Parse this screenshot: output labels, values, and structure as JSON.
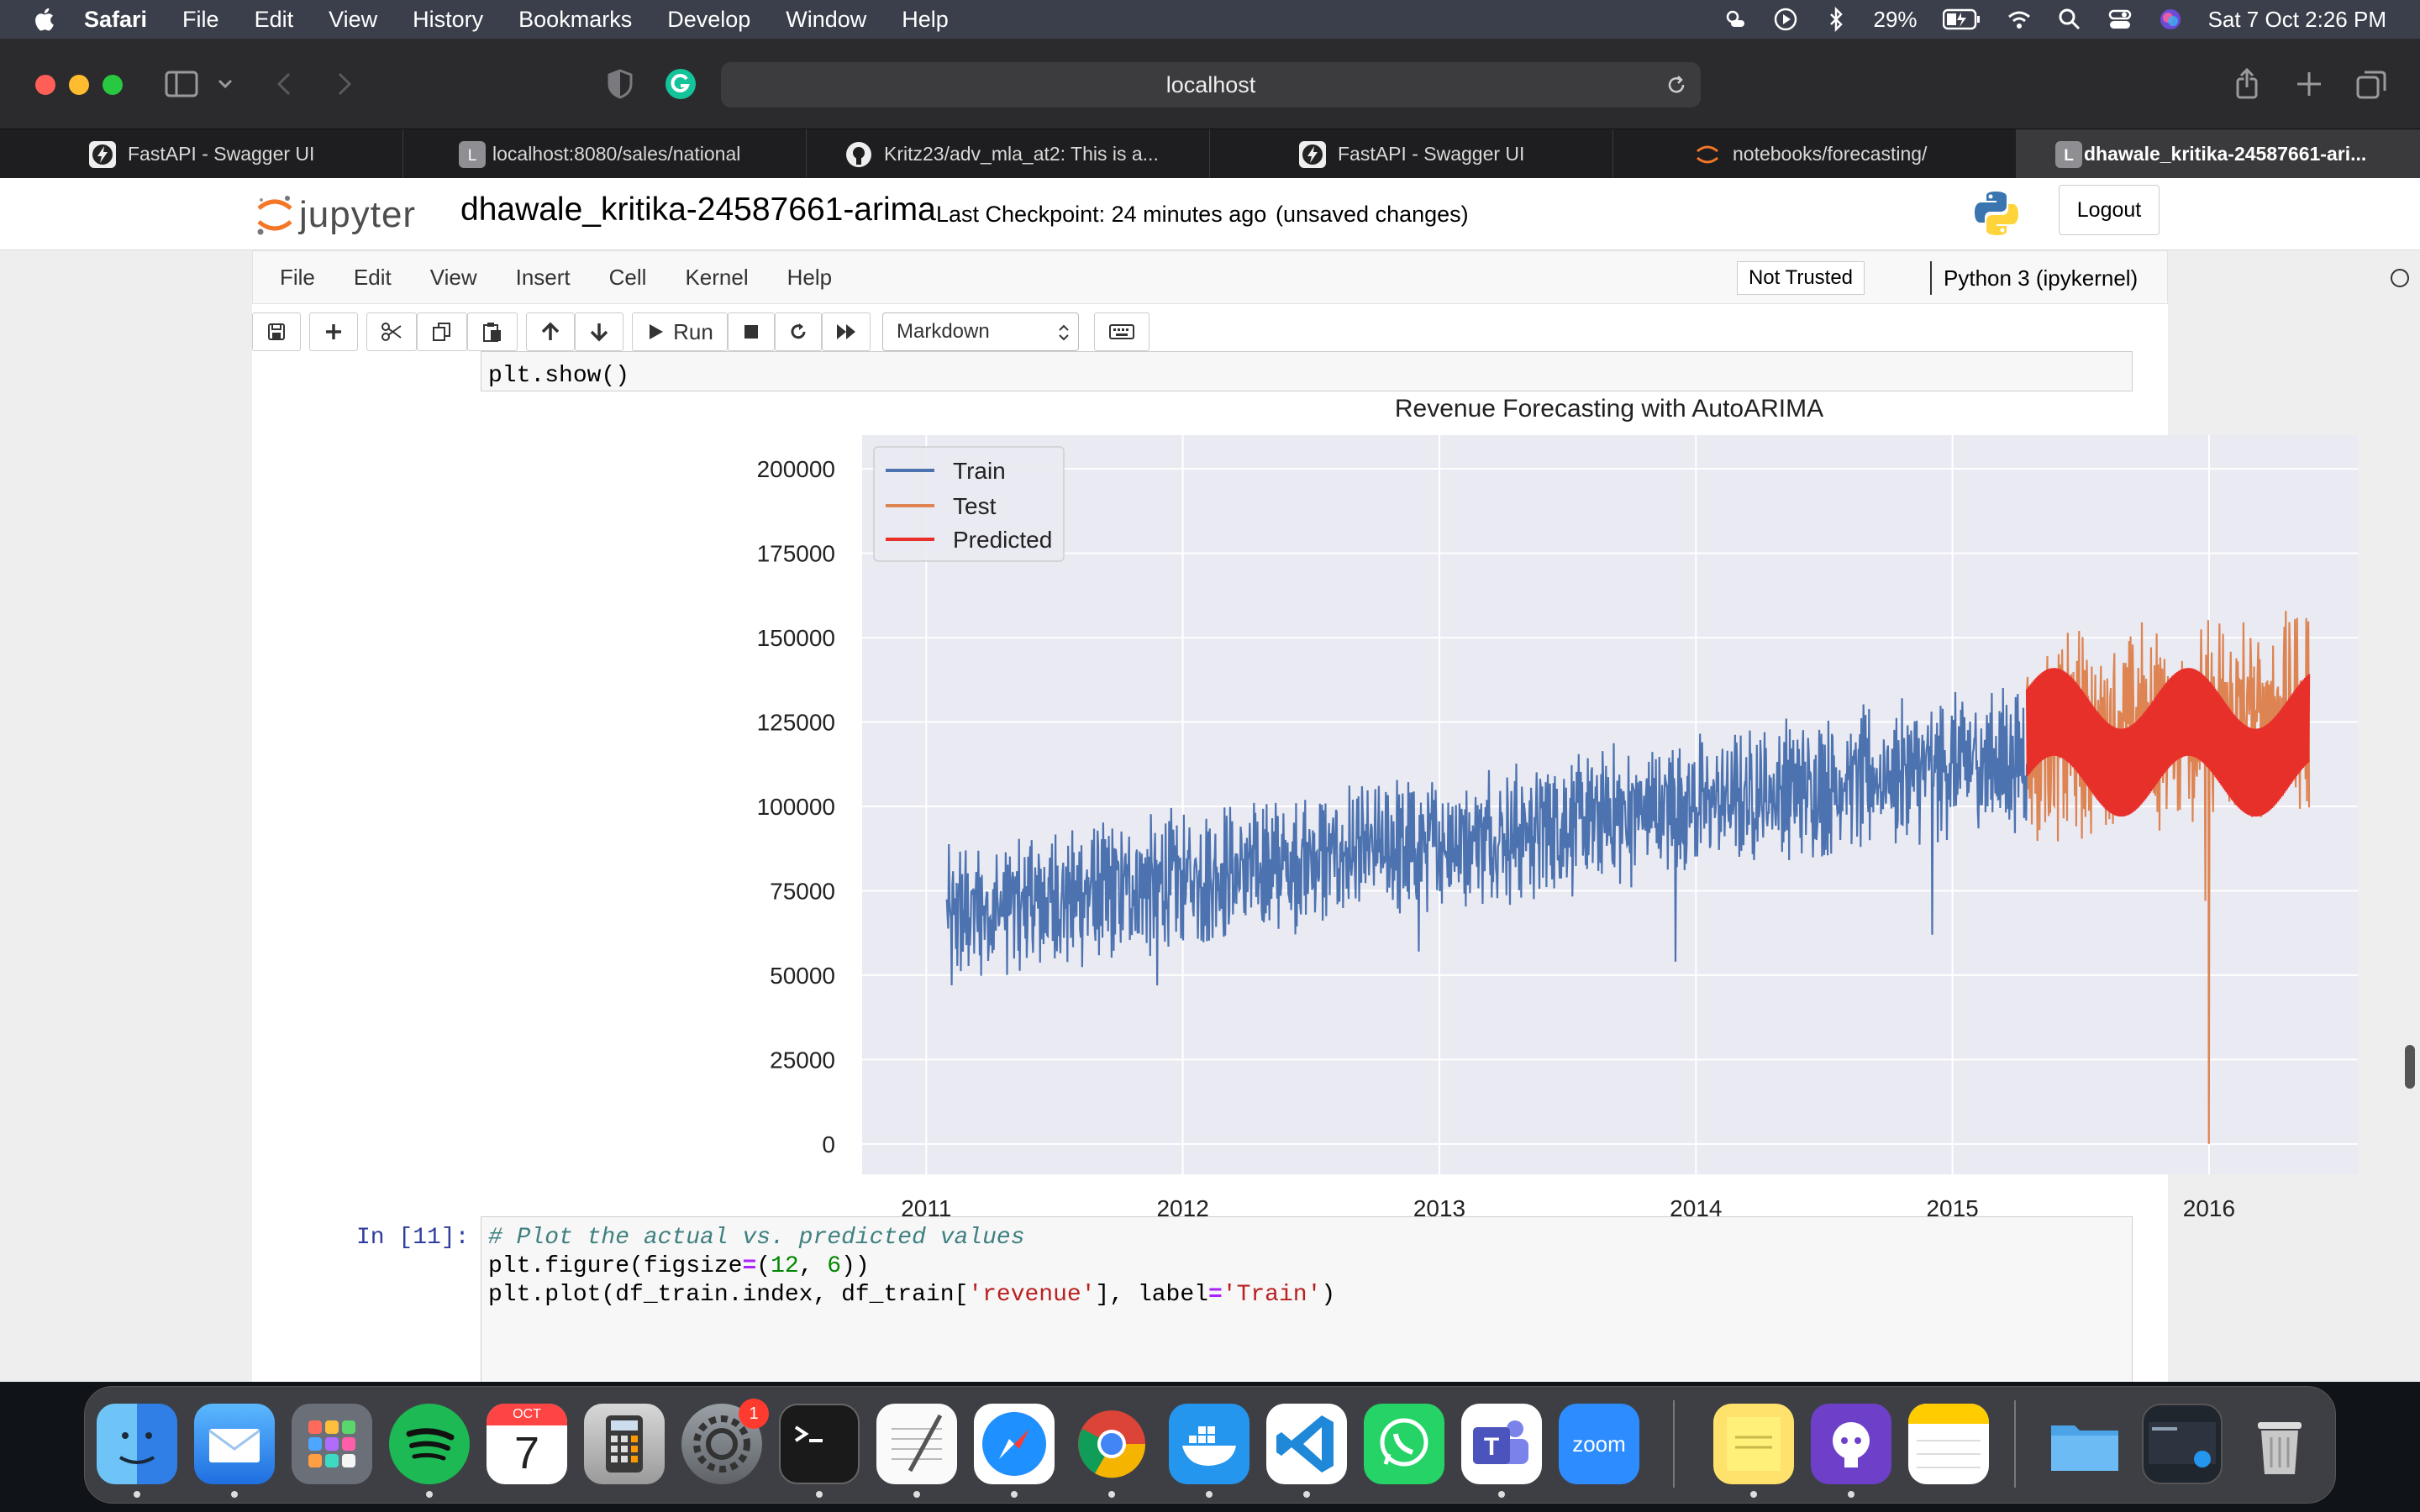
{
  "menubar": {
    "app": "Safari",
    "items": [
      "File",
      "Edit",
      "View",
      "History",
      "Bookmarks",
      "Develop",
      "Window",
      "Help"
    ],
    "battery": "29%",
    "datetime": "Sat 7 Oct  2:26 PM"
  },
  "browser": {
    "url": "localhost",
    "tabs": [
      {
        "label": "FastAPI - Swagger UI"
      },
      {
        "label": "localhost:8080/sales/national"
      },
      {
        "label": "Kritz23/adv_mla_at2: This is a..."
      },
      {
        "label": "FastAPI - Swagger UI"
      },
      {
        "label": "notebooks/forecasting/"
      },
      {
        "label": "dhawale_kritika-24587661-ari..."
      }
    ]
  },
  "jupyter": {
    "logo_text": "jupyter",
    "notebook_title": "dhawale_kritika-24587661-arima",
    "checkpoint": "Last Checkpoint: 24 minutes ago",
    "unsaved": "(unsaved changes)",
    "logout": "Logout",
    "menu": [
      "File",
      "Edit",
      "View",
      "Insert",
      "Cell",
      "Kernel",
      "Help"
    ],
    "not_trusted": "Not Trusted",
    "kernel": "Python 3 (ipykernel)",
    "run_label": "Run",
    "cell_type": "Markdown"
  },
  "cells": {
    "prev_code_last_line": "plt.show()",
    "next_prompt": "In [11]:",
    "next_code": {
      "comment": "# Plot the actual vs. predicted values",
      "l2_a": "plt.figure(figsize",
      "l2_op": "=",
      "l2_b": "(",
      "l2_n1": "12",
      "l2_c": ", ",
      "l2_n2": "6",
      "l2_d": "))",
      "l3_a": "plt.plot(df_train.index, df_train[",
      "l3_s1": "'revenue'",
      "l3_b": "], label",
      "l3_op": "=",
      "l3_s2": "'Train'",
      "l3_c": ")"
    }
  },
  "chart_data": {
    "type": "line",
    "title": "Revenue Forecasting with AutoARIMA",
    "xlabel": "",
    "ylabel": "",
    "xlim": [
      2010.75,
      2016.58
    ],
    "ylim": [
      -9000,
      210000
    ],
    "x_ticks": [
      "2011",
      "2012",
      "2013",
      "2014",
      "2015",
      "2016"
    ],
    "y_ticks": [
      "0",
      "25000",
      "50000",
      "75000",
      "100000",
      "125000",
      "150000",
      "175000",
      "200000"
    ],
    "grid": true,
    "legend_position": "top-left",
    "series": [
      {
        "name": "Train",
        "color": "#4c72b0",
        "x_range": [
          2011.08,
          2015.29
        ],
        "level_start": 68000,
        "level_end": 115000,
        "spread": 18000
      },
      {
        "name": "Test",
        "color": "#dd8452",
        "x_range": [
          2015.29,
          2016.39
        ],
        "level_start": 120000,
        "level_end": 128000,
        "spread": 26000,
        "min_point": {
          "x": 2016.0,
          "y": 0
        }
      },
      {
        "name": "Predicted",
        "color": "#e8302a",
        "x_range": [
          2015.29,
          2016.39
        ],
        "level": 113000,
        "spread": 13000
      }
    ]
  },
  "dock": {
    "calendar_month": "OCT",
    "calendar_day": "7",
    "badge": "1",
    "zoom_label": "zoom"
  }
}
